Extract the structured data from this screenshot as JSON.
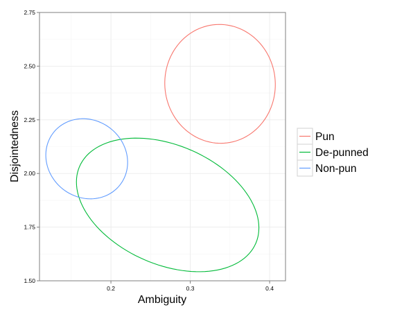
{
  "chart_data": {
    "type": "ellipse-confidence-plot",
    "xlabel": "Ambiguity",
    "ylabel": "Disjointedness",
    "xlim": [
      0.11,
      0.42
    ],
    "ylim": [
      1.5,
      2.75
    ],
    "x_ticks": [
      0.2,
      0.3,
      0.4
    ],
    "x_tick_labels": [
      "0.2",
      "0.3",
      "0.4"
    ],
    "y_ticks": [
      1.5,
      1.75,
      2.0,
      2.25,
      2.5,
      2.75
    ],
    "y_tick_labels": [
      "1.50",
      "1.75",
      "2.00",
      "2.25",
      "2.50",
      "2.75"
    ],
    "grid": true,
    "legend_position": "right",
    "series": [
      {
        "name": "Pun",
        "color": "#F8766D",
        "ellipse": {
          "center": [
            0.3375,
            2.4175
          ],
          "semi_axes": [
            0.0698,
            0.2762
          ],
          "rotation_deg": -20,
          "orientation": "negative"
        }
      },
      {
        "name": "De-punned",
        "color": "#00BA38",
        "ellipse": {
          "center": [
            0.2715,
            1.8535
          ],
          "semi_axes": [
            0.1197,
            0.2807
          ],
          "rotation_deg": -20,
          "orientation": "negative"
        }
      },
      {
        "name": "Non-pun",
        "color": "#619CFF",
        "ellipse": {
          "center": [
            0.1695,
            2.0685
          ],
          "semi_axes": [
            0.0523,
            0.1832
          ],
          "rotation_deg": -20,
          "orientation": "negative"
        }
      }
    ]
  }
}
